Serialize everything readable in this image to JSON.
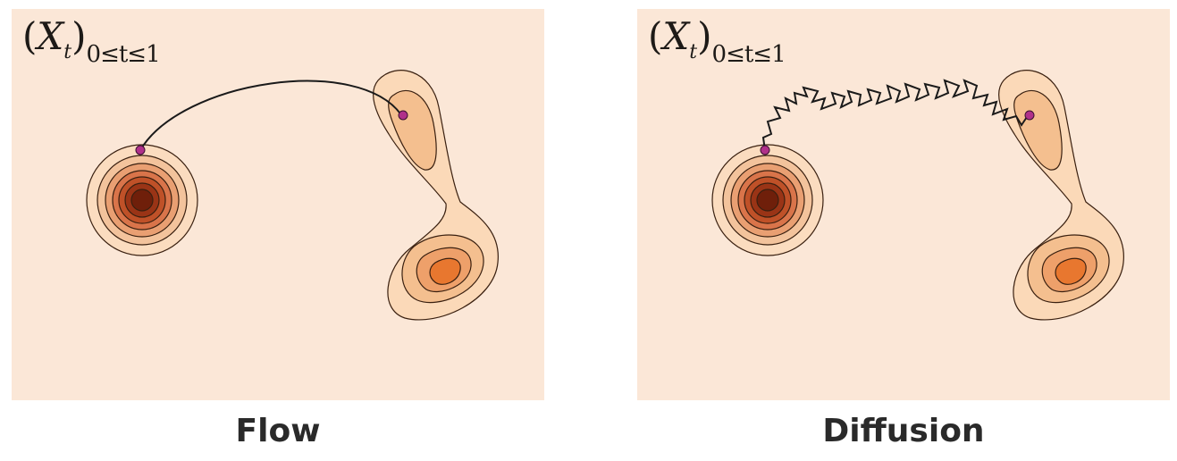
{
  "panels": [
    {
      "id": "flow",
      "label_var": "X",
      "label_sub": "t",
      "label_range": "0≤t≤1",
      "caption": "Flow"
    },
    {
      "id": "diffusion",
      "label_var": "X",
      "label_sub": "t",
      "label_range": "0≤t≤1",
      "caption": "Diffusion"
    }
  ],
  "colors": {
    "panel_bg": "#fbe7d7",
    "contour_stroke": "#3a2010",
    "path_stroke": "#1a1a1a",
    "endpoint": "#b0308a"
  }
}
